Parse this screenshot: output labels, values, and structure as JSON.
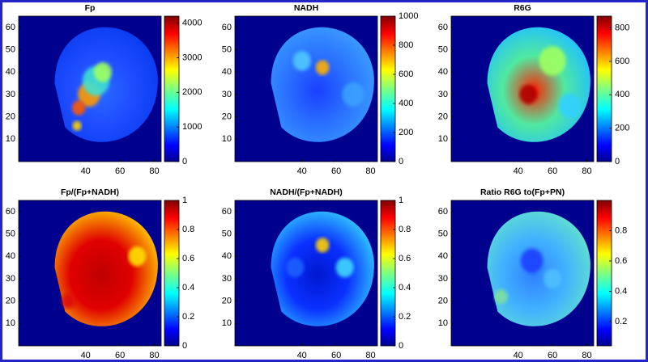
{
  "chart_data": [
    {
      "type": "heatmap",
      "title": "Fp",
      "xlim": [
        1,
        84
      ],
      "xticks": [
        40,
        60,
        80
      ],
      "ylim": [
        0,
        65
      ],
      "yticks": [
        10,
        20,
        30,
        40,
        50,
        60
      ],
      "zlim": [
        0,
        4200
      ],
      "zticks": [
        0,
        1000,
        2000,
        3000,
        4000
      ]
    },
    {
      "type": "heatmap",
      "title": "NADH",
      "xlim": [
        1,
        84
      ],
      "xticks": [
        40,
        60,
        80
      ],
      "ylim": [
        0,
        65
      ],
      "yticks": [
        10,
        20,
        30,
        40,
        50,
        60
      ],
      "zlim": [
        0,
        1000
      ],
      "zticks": [
        0,
        200,
        400,
        600,
        800,
        1000
      ]
    },
    {
      "type": "heatmap",
      "title": "R6G",
      "xlim": [
        1,
        84
      ],
      "xticks": [
        40,
        60,
        80
      ],
      "ylim": [
        0,
        65
      ],
      "yticks": [
        10,
        20,
        30,
        40,
        50,
        60
      ],
      "zlim": [
        0,
        870
      ],
      "zticks": [
        0,
        200,
        400,
        600,
        800
      ]
    },
    {
      "type": "heatmap",
      "title": "Fp/(Fp+NADH)",
      "xlim": [
        1,
        84
      ],
      "xticks": [
        40,
        60,
        80
      ],
      "ylim": [
        0,
        65
      ],
      "yticks": [
        10,
        20,
        30,
        40,
        50,
        60
      ],
      "zlim": [
        0,
        1
      ],
      "zticks": [
        0,
        0.2,
        0.4,
        0.6,
        0.8,
        1
      ]
    },
    {
      "type": "heatmap",
      "title": "NADH/(Fp+NADH)",
      "xlim": [
        1,
        84
      ],
      "xticks": [
        40,
        60,
        80
      ],
      "ylim": [
        0,
        65
      ],
      "yticks": [
        10,
        20,
        30,
        40,
        50,
        60
      ],
      "zlim": [
        0,
        1
      ],
      "zticks": [
        0,
        0.2,
        0.4,
        0.6,
        0.8,
        1
      ]
    },
    {
      "type": "heatmap",
      "title": "Ratio R6G to(Fp+PN)",
      "xlim": [
        1,
        84
      ],
      "xticks": [
        40,
        60,
        80
      ],
      "ylim": [
        0,
        65
      ],
      "yticks": [
        10,
        20,
        30,
        40,
        50,
        60
      ],
      "zlim": [
        0.04,
        1.0
      ],
      "zticks": [
        0.2,
        0.4,
        0.6,
        0.8
      ]
    }
  ]
}
